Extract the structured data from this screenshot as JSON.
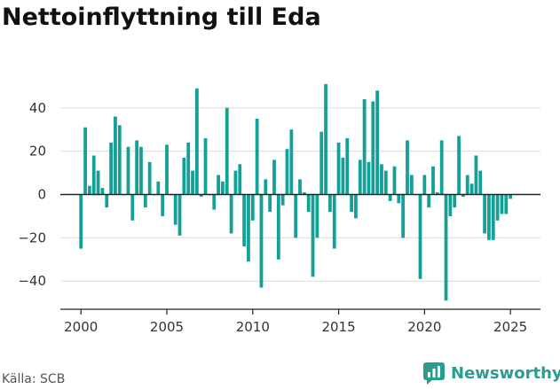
{
  "title": "Nettoinflyttning till Eda",
  "source": "Källa: SCB",
  "brand": {
    "name": "Newsworthy",
    "icon": "newsworthy-logo-icon",
    "color": "#2a9d8f"
  },
  "chart_data": {
    "type": "bar",
    "bar_color": "#12a097",
    "title": "Nettoinflyttning till Eda",
    "xlabel": "",
    "ylabel": "",
    "xlim": [
      1998.8,
      2026.75
    ],
    "ylim": [
      -53,
      53
    ],
    "yticks": [
      40,
      20,
      0,
      -20,
      -40
    ],
    "ytick_labels": [
      "40",
      "20",
      "0",
      "−20",
      "−40"
    ],
    "xticks": [
      2000,
      2005,
      2010,
      2015,
      2020,
      2025
    ],
    "grid": true,
    "legend": "none",
    "x": [
      2000.0,
      2000.25,
      2000.5,
      2000.75,
      2001.0,
      2001.25,
      2001.5,
      2001.75,
      2002.0,
      2002.25,
      2002.5,
      2002.75,
      2003.0,
      2003.25,
      2003.5,
      2003.75,
      2004.0,
      2004.25,
      2004.5,
      2004.75,
      2005.0,
      2005.25,
      2005.5,
      2005.75,
      2006.0,
      2006.25,
      2006.5,
      2006.75,
      2007.0,
      2007.25,
      2007.5,
      2007.75,
      2008.0,
      2008.25,
      2008.5,
      2008.75,
      2009.0,
      2009.25,
      2009.5,
      2009.75,
      2010.0,
      2010.25,
      2010.5,
      2010.75,
      2011.0,
      2011.25,
      2011.5,
      2011.75,
      2012.0,
      2012.25,
      2012.5,
      2012.75,
      2013.0,
      2013.25,
      2013.5,
      2013.75,
      2014.0,
      2014.25,
      2014.5,
      2014.75,
      2015.0,
      2015.25,
      2015.5,
      2015.75,
      2016.0,
      2016.25,
      2016.5,
      2016.75,
      2017.0,
      2017.25,
      2017.5,
      2017.75,
      2018.0,
      2018.25,
      2018.5,
      2018.75,
      2019.0,
      2019.25,
      2019.5,
      2019.75,
      2020.0,
      2020.25,
      2020.5,
      2020.75,
      2021.0,
      2021.25,
      2021.5,
      2021.75,
      2022.0,
      2022.25,
      2022.5,
      2022.75,
      2023.0,
      2023.25,
      2023.5,
      2023.75,
      2024.0,
      2024.25,
      2024.5,
      2024.75,
      2025.0
    ],
    "values": [
      -25,
      31,
      4,
      18,
      11,
      3,
      -6,
      24,
      36,
      32,
      0,
      22,
      -12,
      25,
      22,
      -6,
      15,
      0,
      6,
      -10,
      23,
      0,
      -14,
      -19,
      17,
      24,
      11,
      49,
      -1,
      26,
      0,
      -7,
      9,
      6,
      40,
      -18,
      11,
      14,
      -24,
      -31,
      -12,
      35,
      -43,
      7,
      -8,
      16,
      -30,
      -5,
      21,
      30,
      -20,
      7,
      1,
      -8,
      -38,
      -20,
      29,
      51,
      -8,
      -25,
      24,
      17,
      26,
      -8,
      -11,
      16,
      44,
      15,
      43,
      48,
      14,
      11,
      -3,
      13,
      -4,
      -20,
      25,
      9,
      0,
      -39,
      9,
      -6,
      13,
      1,
      25,
      -49,
      -10,
      -6,
      27,
      -1,
      9,
      5,
      18,
      11,
      -18,
      -21,
      -21,
      -12,
      -9,
      -9,
      -2
    ]
  }
}
